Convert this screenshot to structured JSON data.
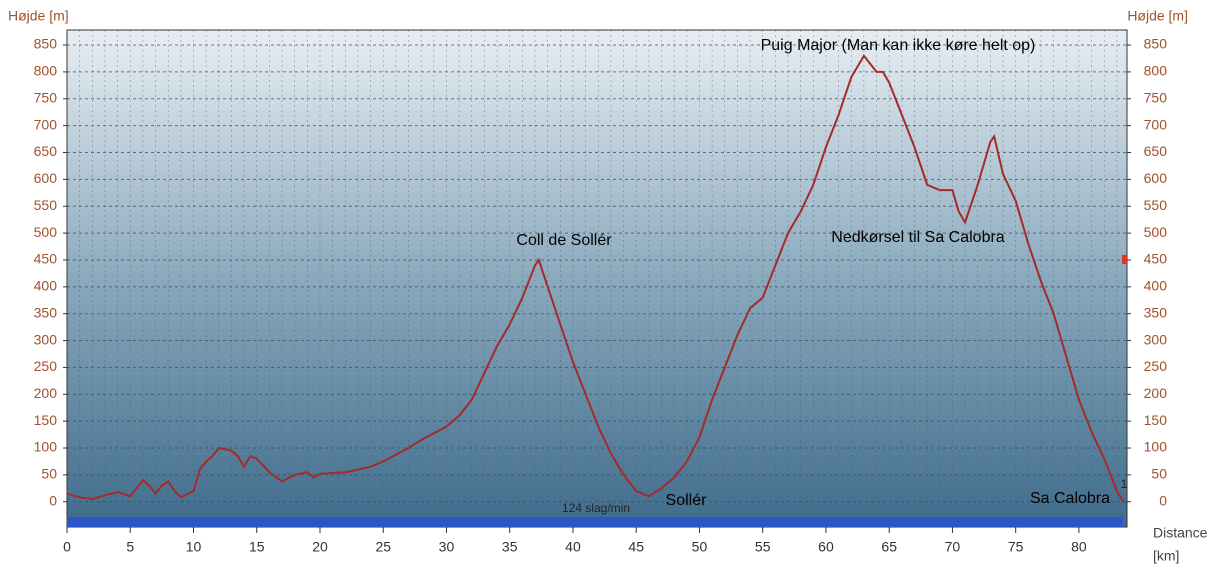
{
  "chart_data": {
    "type": "line",
    "y_label": "Højde [m]",
    "y2_label": "Højde [m]",
    "x_label": "Distance",
    "x_unit": "[km]",
    "annotations": [
      "Puig Major (Man kan ikke køre helt op)",
      "Coll de Sollér",
      "Nedkørsel til Sa Calobra",
      "Sollér",
      "Sa Calobra",
      "124 slag/min",
      "1"
    ],
    "x": [
      0,
      1,
      2,
      3,
      4,
      5,
      6,
      6.5,
      7,
      7.5,
      8,
      8.5,
      9,
      10,
      10.5,
      11,
      11.5,
      12,
      13,
      13.5,
      14,
      14.5,
      15,
      16,
      17,
      18,
      19,
      19.5,
      20,
      22,
      24,
      25,
      27,
      28,
      30,
      31,
      32,
      33,
      34,
      35,
      36,
      37,
      37.3,
      38,
      39,
      40,
      41,
      42,
      43,
      44,
      45,
      46,
      47,
      48,
      49,
      50,
      51,
      52,
      53,
      54,
      55,
      56,
      57,
      58,
      59,
      60,
      61,
      62,
      63,
      64,
      64.5,
      65,
      66,
      67,
      68,
      69,
      70,
      70.5,
      71,
      72,
      73,
      73.3,
      74,
      75,
      76,
      77,
      78,
      79,
      80,
      81,
      82,
      83,
      83.5
    ],
    "series": [
      {
        "name": "Højde",
        "color": "#a52a2a",
        "values": [
          15,
          8,
          5,
          12,
          18,
          10,
          40,
          30,
          15,
          30,
          38,
          20,
          8,
          20,
          60,
          75,
          85,
          100,
          95,
          85,
          65,
          85,
          80,
          55,
          38,
          50,
          55,
          45,
          52,
          55,
          65,
          75,
          100,
          115,
          140,
          160,
          190,
          240,
          290,
          330,
          380,
          440,
          450,
          400,
          330,
          260,
          200,
          140,
          90,
          50,
          20,
          10,
          25,
          45,
          75,
          120,
          190,
          250,
          310,
          360,
          380,
          440,
          500,
          540,
          590,
          660,
          720,
          790,
          830,
          800,
          800,
          780,
          720,
          660,
          590,
          580,
          580,
          540,
          520,
          590,
          670,
          680,
          610,
          560,
          480,
          410,
          350,
          270,
          190,
          130,
          80,
          20,
          0
        ]
      }
    ],
    "xlim": [
      0,
      83.8
    ],
    "ylim": [
      -47,
      878
    ],
    "xticks": [
      0,
      5,
      10,
      15,
      20,
      25,
      30,
      35,
      40,
      45,
      50,
      55,
      60,
      65,
      70,
      75,
      80
    ],
    "yticks": [
      0,
      50,
      100,
      150,
      200,
      250,
      300,
      350,
      400,
      450,
      500,
      550,
      600,
      650,
      700,
      750,
      800,
      850
    ],
    "grid": true
  }
}
